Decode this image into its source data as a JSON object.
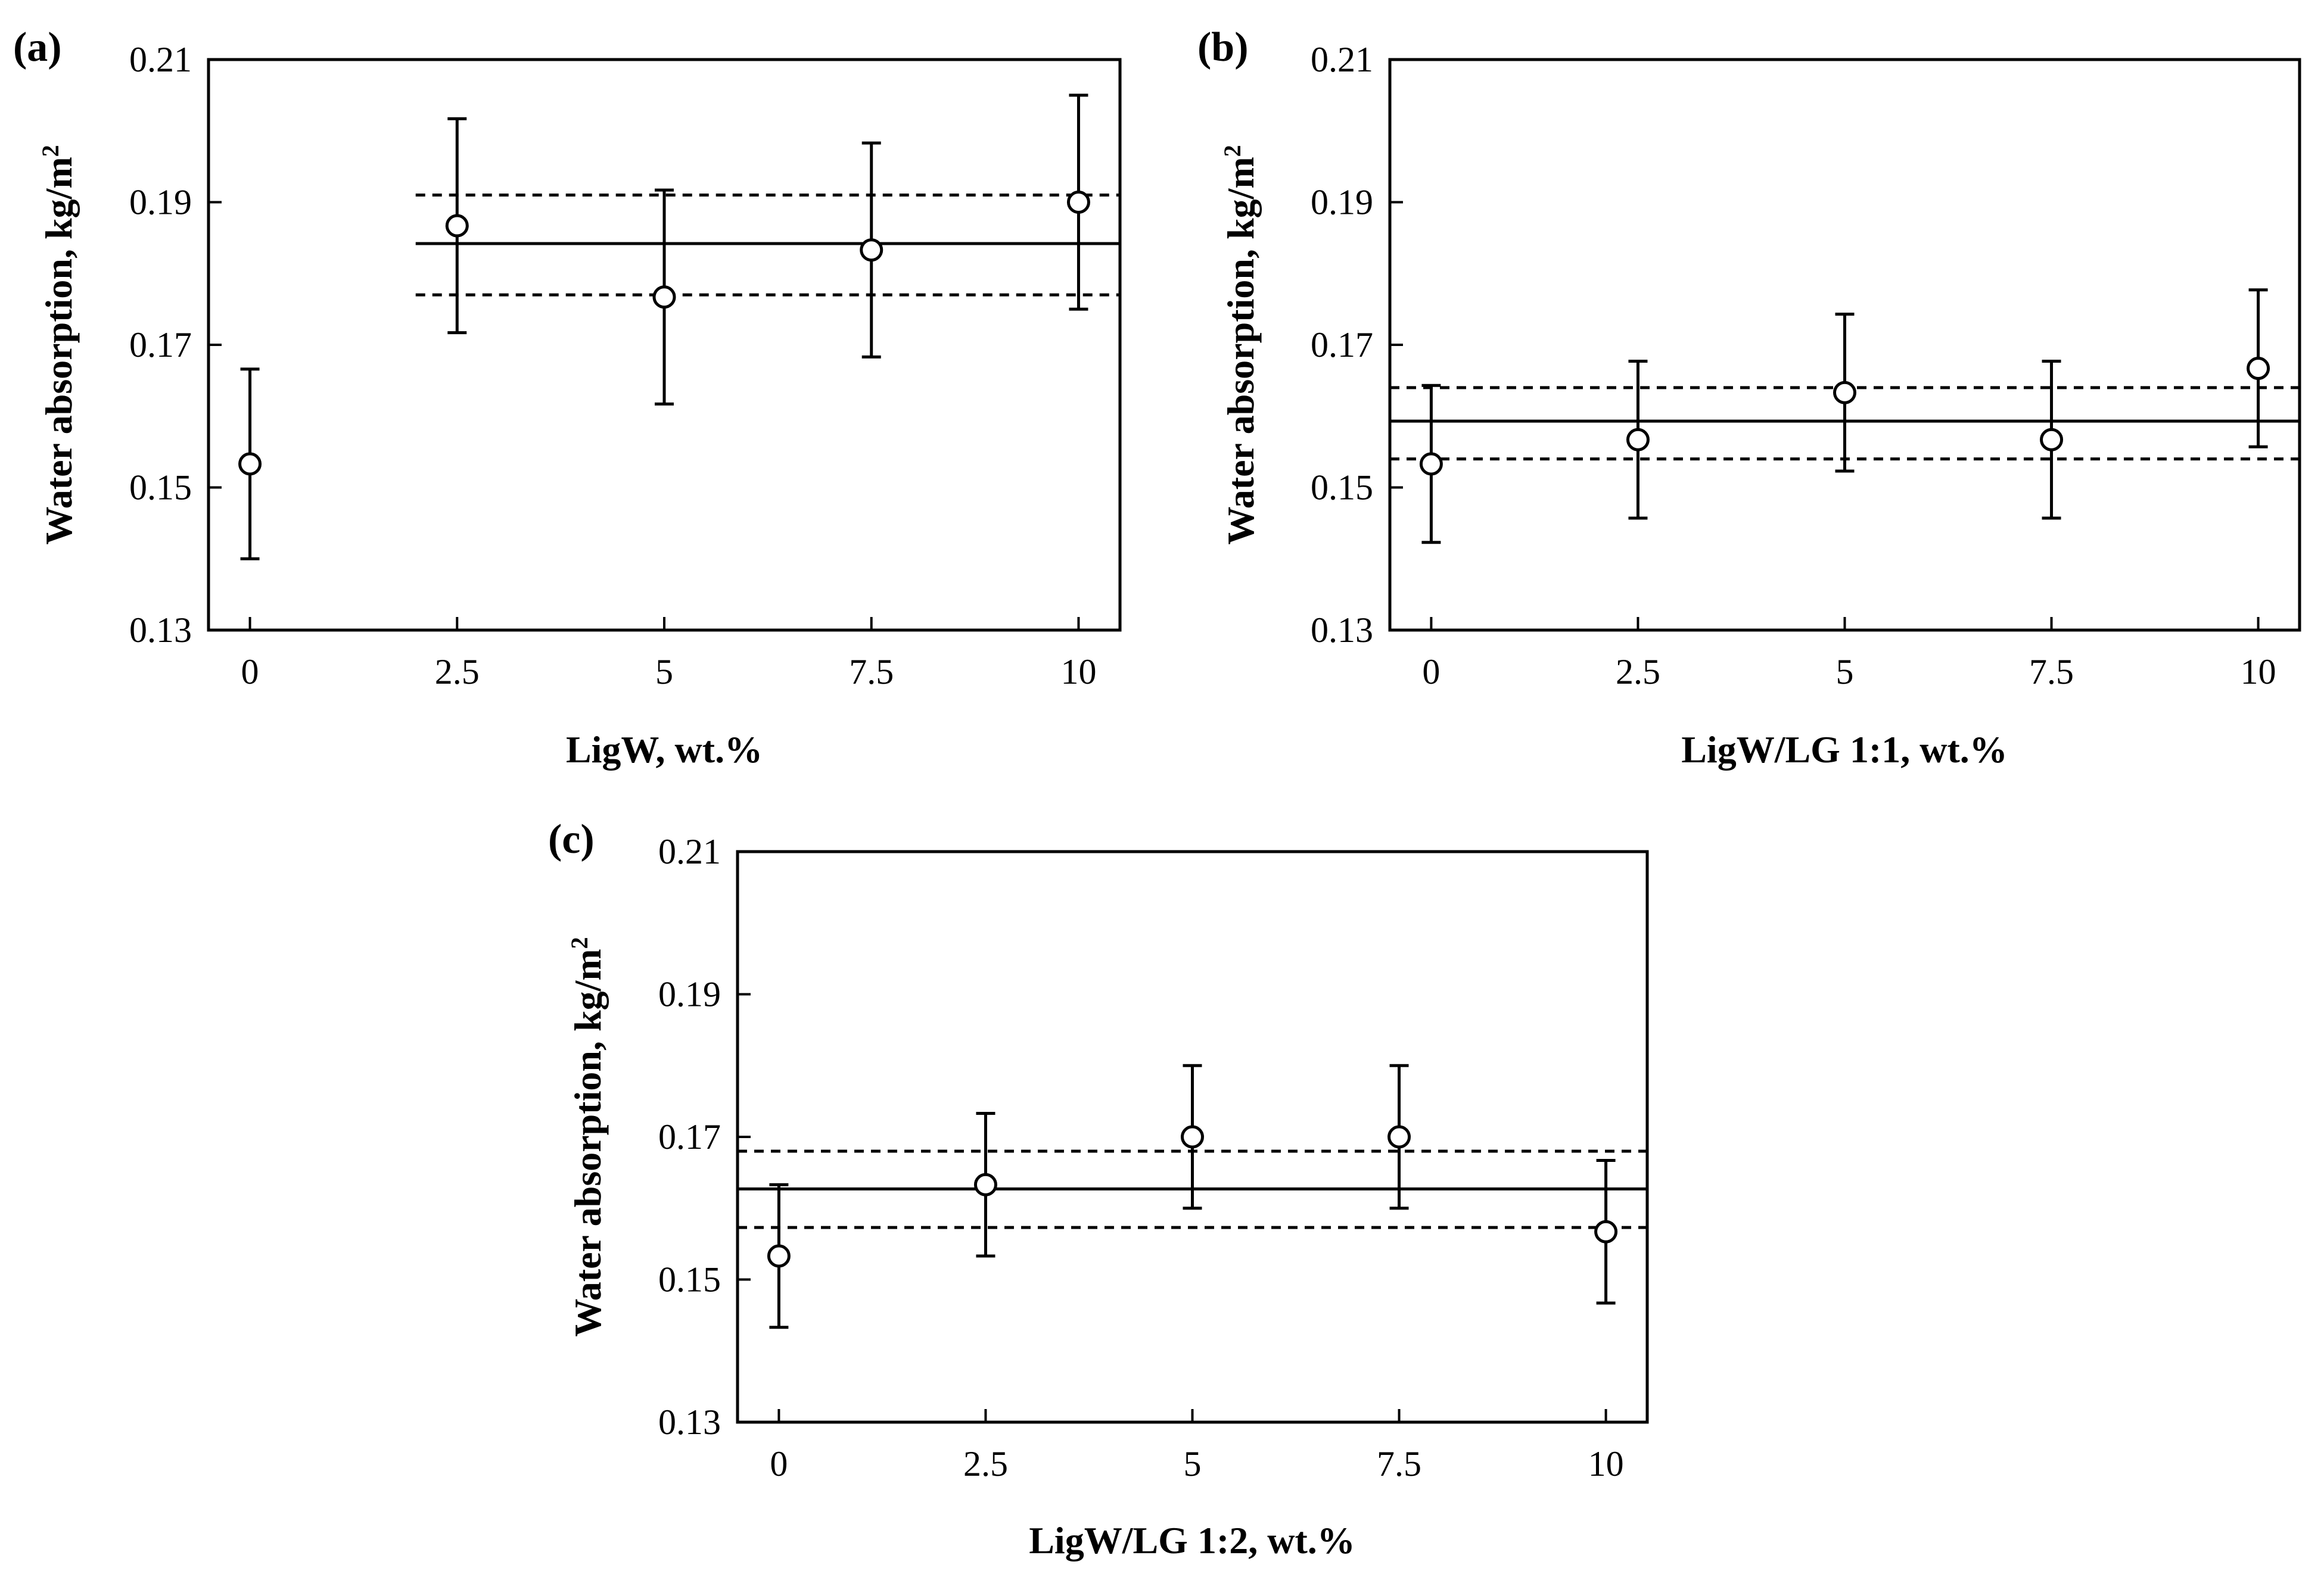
{
  "chart_data": [
    {
      "panel_label": "(a)",
      "type": "scatter",
      "xlabel": "LigW, wt.%",
      "ylabel_main": "Water absorption, kg/m",
      "ylabel_sup": "2",
      "x": [
        0,
        2.5,
        5,
        7.5,
        10
      ],
      "x_tick_labels": [
        "0",
        "2.5",
        "5",
        "7.5",
        "10"
      ],
      "y": [
        0.1533,
        0.1867,
        0.1767,
        0.1833,
        0.19
      ],
      "y_err": [
        0.0133,
        0.015,
        0.015,
        0.015,
        0.015
      ],
      "ylim": [
        0.13,
        0.21
      ],
      "y_tick_labels": [
        "0.13",
        "0.15",
        "0.17",
        "0.19",
        "0.21"
      ],
      "mean_line": {
        "value": 0.1842,
        "x_range": [
          2,
          10.5
        ]
      },
      "ci_lines": {
        "upper": 0.191,
        "lower": 0.177,
        "x_range": [
          2,
          10.5
        ]
      }
    },
    {
      "panel_label": "(b)",
      "type": "scatter",
      "xlabel": "LigW/LG 1:1, wt.%",
      "ylabel_main": "Water absorption, kg/m",
      "ylabel_sup": "2",
      "x": [
        0,
        2.5,
        5,
        7.5,
        10
      ],
      "x_tick_labels": [
        "0",
        "2.5",
        "5",
        "7.5",
        "10"
      ],
      "y": [
        0.1533,
        0.1567,
        0.1633,
        0.1567,
        0.1667
      ],
      "y_err": [
        0.011,
        0.011,
        0.011,
        0.011,
        0.011
      ],
      "ylim": [
        0.13,
        0.21
      ],
      "y_tick_labels": [
        "0.13",
        "0.15",
        "0.17",
        "0.19",
        "0.21"
      ],
      "mean_line": {
        "value": 0.1593,
        "x_range": [
          -0.5,
          10.5
        ]
      },
      "ci_lines": {
        "upper": 0.164,
        "lower": 0.154,
        "x_range": [
          -0.5,
          10.5
        ]
      }
    },
    {
      "panel_label": "(c)",
      "type": "scatter",
      "xlabel": "LigW/LG 1:2, wt.%",
      "ylabel_main": "Water absorption, kg/m",
      "ylabel_sup": "2",
      "x": [
        0,
        2.5,
        5,
        7.5,
        10
      ],
      "x_tick_labels": [
        "0",
        "2.5",
        "5",
        "7.5",
        "10"
      ],
      "y": [
        0.1533,
        0.1633,
        0.17,
        0.17,
        0.1567
      ],
      "y_err": [
        0.01,
        0.01,
        0.01,
        0.01,
        0.01
      ],
      "ylim": [
        0.13,
        0.21
      ],
      "y_tick_labels": [
        "0.13",
        "0.15",
        "0.17",
        "0.19",
        "0.21"
      ],
      "mean_line": {
        "value": 0.1627,
        "x_range": [
          -0.5,
          10.5
        ]
      },
      "ci_lines": {
        "upper": 0.168,
        "lower": 0.1573,
        "x_range": [
          -0.5,
          10.5
        ]
      }
    }
  ]
}
